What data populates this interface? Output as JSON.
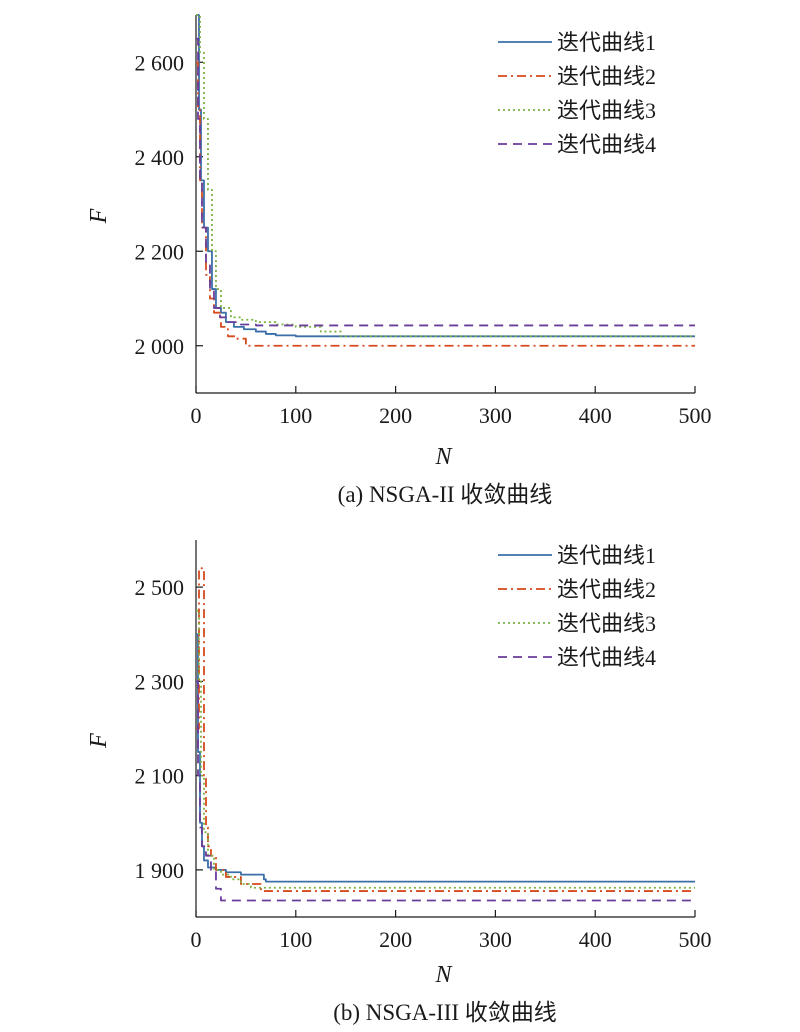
{
  "colors": {
    "curve1": "#3a6fa8",
    "curve2": "#d64a1e",
    "curve3": "#7cb342",
    "curve4": "#6a3d9a",
    "axis": "#1a1a1a"
  },
  "chart_data": [
    {
      "type": "line",
      "caption": "(a) NSGA-II 收敛曲线",
      "xlabel": "N",
      "ylabel": "F",
      "xlim": [
        0,
        500
      ],
      "ylim": [
        1900,
        2700
      ],
      "xticks": [
        0,
        100,
        200,
        300,
        400,
        500
      ],
      "xtick_labels": [
        "0",
        "100",
        "200",
        "300",
        "400",
        "500"
      ],
      "yticks": [
        2000,
        2200,
        2400,
        2600
      ],
      "ytick_labels": [
        "2 000",
        "2 200",
        "2 400",
        "2 600"
      ],
      "grid": false,
      "legend": "top-right",
      "series": [
        {
          "name": "迭代曲线1",
          "style": "solid",
          "color": "#3a6fa8",
          "x": [
            0,
            3,
            5,
            8,
            12,
            16,
            20,
            25,
            30,
            38,
            48,
            60,
            70,
            80,
            100,
            150,
            500
          ],
          "y": [
            2700,
            2500,
            2350,
            2250,
            2200,
            2120,
            2080,
            2070,
            2050,
            2040,
            2035,
            2030,
            2025,
            2022,
            2020,
            2020,
            2020
          ]
        },
        {
          "name": "迭代曲线2",
          "style": "dashdot",
          "color": "#d64a1e",
          "x": [
            0,
            2,
            4,
            6,
            10,
            14,
            18,
            25,
            32,
            40,
            50,
            500
          ],
          "y": [
            2600,
            2500,
            2350,
            2250,
            2150,
            2100,
            2070,
            2040,
            2020,
            2015,
            2000,
            2000
          ]
        },
        {
          "name": "迭代曲线3",
          "style": "dotted",
          "color": "#7cb342",
          "x": [
            0,
            4,
            8,
            12,
            16,
            20,
            25,
            35,
            45,
            60,
            80,
            100,
            125,
            145,
            500
          ],
          "y": [
            2700,
            2620,
            2480,
            2330,
            2200,
            2120,
            2080,
            2060,
            2055,
            2050,
            2045,
            2040,
            2030,
            2020,
            2020
          ]
        },
        {
          "name": "迭代曲线4",
          "style": "dashed",
          "color": "#6a3d9a",
          "x": [
            0,
            2,
            4,
            6,
            10,
            14,
            18,
            24,
            30,
            40,
            60,
            500
          ],
          "y": [
            2650,
            2480,
            2350,
            2250,
            2170,
            2120,
            2080,
            2060,
            2050,
            2045,
            2043,
            2043
          ]
        }
      ]
    },
    {
      "type": "line",
      "caption": "(b) NSGA-III 收敛曲线",
      "xlabel": "N",
      "ylabel": "F",
      "xlim": [
        0,
        500
      ],
      "ylim": [
        1800,
        2600
      ],
      "xticks": [
        0,
        100,
        200,
        300,
        400,
        500
      ],
      "xtick_labels": [
        "0",
        "100",
        "200",
        "300",
        "400",
        "500"
      ],
      "yticks": [
        1900,
        2100,
        2300,
        2500
      ],
      "ytick_labels": [
        "1 900",
        "2 100",
        "2 300",
        "2 500"
      ],
      "grid": false,
      "legend": "top-right",
      "series": [
        {
          "name": "迭代曲线1",
          "style": "solid",
          "color": "#3a6fa8",
          "x": [
            0,
            2,
            4,
            6,
            8,
            12,
            20,
            30,
            45,
            68,
            70,
            500
          ],
          "y": [
            2400,
            2150,
            2000,
            1950,
            1920,
            1905,
            1900,
            1895,
            1890,
            1880,
            1875,
            1875
          ]
        },
        {
          "name": "迭代曲线2",
          "style": "dashdot",
          "color": "#d64a1e",
          "x": [
            0,
            3,
            6,
            8,
            10,
            12,
            15,
            20,
            30,
            45,
            65,
            500
          ],
          "y": [
            2200,
            2540,
            2540,
            2100,
            1990,
            1950,
            1930,
            1900,
            1885,
            1870,
            1855,
            1855
          ]
        },
        {
          "name": "迭代曲线3",
          "style": "dotted",
          "color": "#7cb342",
          "x": [
            0,
            3,
            5,
            8,
            12,
            18,
            25,
            35,
            45,
            55,
            500
          ],
          "y": [
            2450,
            2300,
            2100,
            1980,
            1930,
            1900,
            1890,
            1880,
            1870,
            1862,
            1862
          ]
        },
        {
          "name": "迭代曲线4",
          "style": "dashed",
          "color": "#6a3d9a",
          "x": [
            0,
            2,
            4,
            6,
            10,
            15,
            20,
            25,
            500
          ],
          "y": [
            2300,
            2100,
            1990,
            1950,
            1930,
            1900,
            1860,
            1835,
            1835
          ]
        }
      ]
    }
  ]
}
